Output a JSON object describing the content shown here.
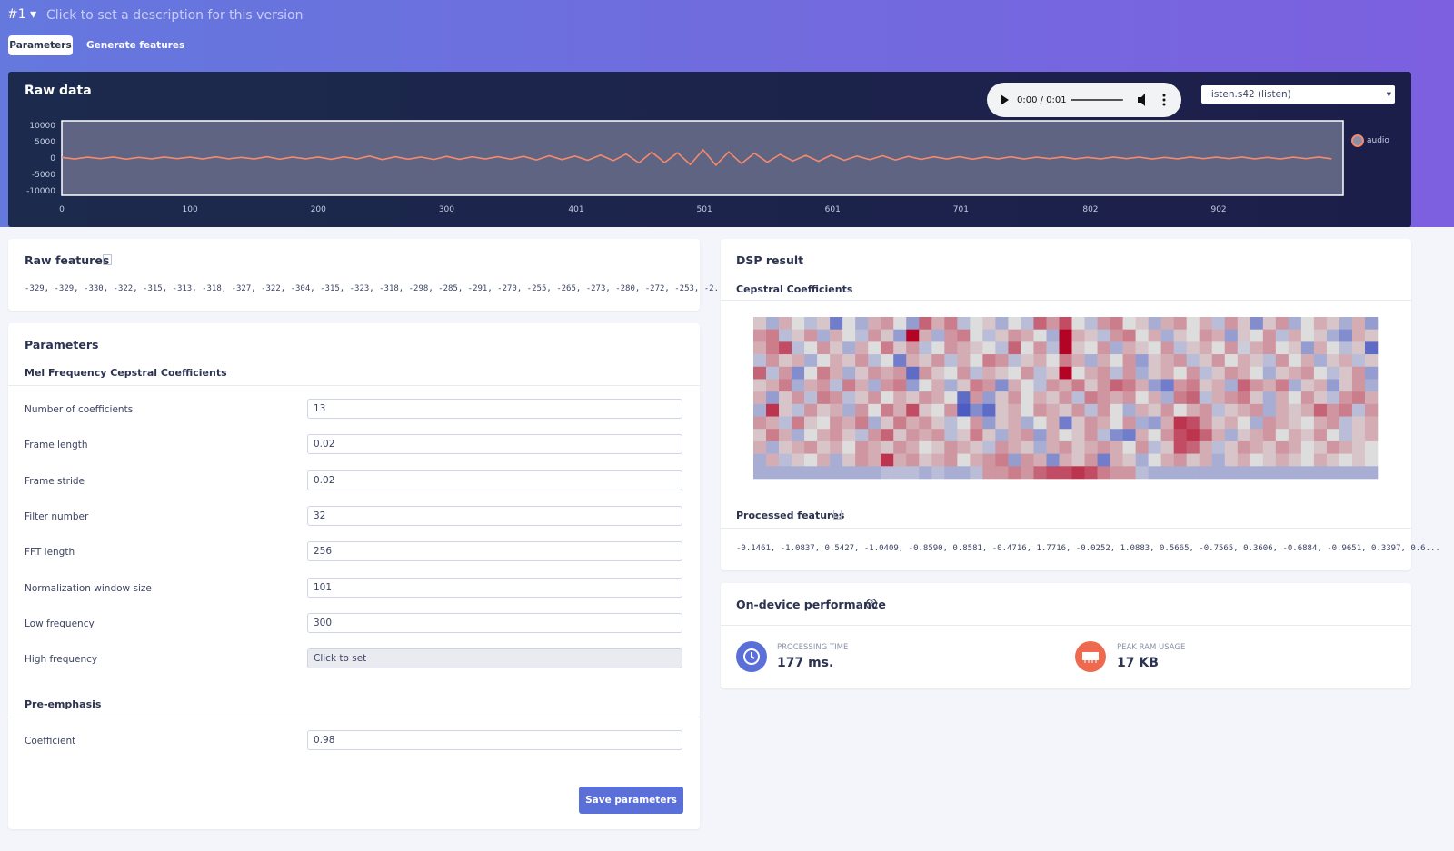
{
  "header": {
    "version": "#1",
    "description": "Click to set a description for this version"
  },
  "tabs": [
    "Parameters",
    "Generate features"
  ],
  "raw_data": {
    "player_time": "0:00 / 0:01",
    "sample_select": "listen.s42 (listen)"
  },
  "chart_data": [
    {
      "type": "line",
      "title": "Raw data",
      "x": [
        0,
        10,
        20,
        30,
        40,
        50,
        60,
        70,
        80,
        90,
        100,
        110,
        120,
        130,
        140,
        150,
        160,
        170,
        180,
        190,
        200,
        210,
        220,
        230,
        240,
        250,
        260,
        270,
        280,
        290,
        300,
        310,
        320,
        330,
        340,
        350,
        360,
        370,
        380,
        390,
        400,
        410,
        420,
        430,
        440,
        450,
        460,
        470,
        480,
        490,
        500,
        510,
        520,
        530,
        540,
        550,
        560,
        570,
        580,
        590,
        600,
        610,
        620,
        630,
        640,
        650,
        660,
        670,
        680,
        690,
        700,
        710,
        720,
        730,
        740,
        750,
        760,
        770,
        780,
        790,
        800,
        810,
        820,
        830,
        840,
        850,
        860,
        870,
        880,
        890,
        900,
        910,
        920,
        930,
        940,
        950,
        960,
        970,
        980,
        990
      ],
      "series": [
        {
          "name": "audio",
          "color": "#f58a6c",
          "values": [
            200,
            -300,
            250,
            -200,
            300,
            -350,
            200,
            -250,
            300,
            -200,
            250,
            -300,
            350,
            -250,
            200,
            -300,
            400,
            -350,
            300,
            -250,
            300,
            -400,
            350,
            -300,
            600,
            -500,
            400,
            -350,
            300,
            -450,
            500,
            -400,
            350,
            -300,
            400,
            -350,
            500,
            -600,
            700,
            -500,
            600,
            -700,
            900,
            -800,
            1200,
            -1500,
            1800,
            -1400,
            1600,
            -2000,
            2500,
            -2200,
            1900,
            -1700,
            1500,
            -1300,
            1100,
            -900,
            800,
            -1000,
            900,
            -700,
            600,
            -500,
            700,
            -600,
            500,
            -400,
            350,
            -300,
            400,
            -350,
            300,
            -250,
            350,
            -300,
            250,
            -200,
            300,
            -250,
            200,
            -250,
            300,
            -200,
            250,
            -300,
            200,
            -250,
            300,
            -200,
            250,
            -200,
            300,
            -250,
            200,
            -300,
            250,
            -200,
            300,
            -250
          ]
        }
      ],
      "xlim": [
        0,
        999
      ],
      "xticks": [
        0,
        100,
        200,
        300,
        401,
        501,
        601,
        701,
        802,
        902
      ],
      "ylim": [
        -11400,
        11400
      ],
      "yticks": [
        10000,
        5000,
        0,
        -5000,
        -10000
      ],
      "grid": false,
      "legend": "right"
    },
    {
      "type": "heatmap",
      "title": "Cepstral Coefficients",
      "colors": [
        "#3b4cc0",
        "#dddddd",
        "#b40426"
      ],
      "z": [
        [
          0.1,
          -0.3,
          0.2,
          0,
          -0.2,
          0.1,
          -0.6,
          0,
          -0.3,
          0.2,
          0.3,
          0,
          -0.4,
          0.5,
          0.2,
          0.4,
          -0.2,
          0,
          0.1,
          -0.3,
          0,
          -0.2,
          0.5,
          0.3,
          0.6,
          0,
          -0.2,
          0.3,
          0.4,
          0,
          0.1,
          -0.3,
          0.2,
          0.3,
          0,
          0.2,
          -0.2,
          0.3,
          0.1,
          -0.5,
          0.1,
          0.3,
          -0.3,
          0,
          0.2,
          0.1,
          -0.3,
          0.2,
          -0.4
        ],
        [
          0.3,
          0.4,
          -0.2,
          0.1,
          0.3,
          -0.3,
          0.2,
          0,
          -0.2,
          0.3,
          0.1,
          -0.4,
          0.9,
          0.2,
          -0.3,
          0.3,
          0.4,
          0,
          -0.2,
          0.1,
          0.3,
          0.2,
          0,
          -0.3,
          0.9,
          0.2,
          0.1,
          -0.2,
          0.3,
          0.4,
          0,
          0.2,
          -0.3,
          0.1,
          0,
          0.3,
          0.2,
          -0.4,
          0.1,
          0,
          0.3,
          -0.2,
          0.2,
          0,
          0.1,
          -0.3,
          -0.5,
          0.2,
          0.1
        ],
        [
          0.2,
          0.4,
          0.6,
          -0.2,
          0,
          0.3,
          0.1,
          -0.3,
          0.2,
          0,
          0.4,
          0.1,
          0.3,
          -0.2,
          0,
          0.3,
          0.2,
          0.1,
          0,
          -0.2,
          0.5,
          0,
          0.3,
          -0.2,
          0.9,
          0.1,
          0,
          0.3,
          -0.3,
          0.2,
          0.1,
          0,
          0.3,
          -0.2,
          0.1,
          0.2,
          0,
          0.3,
          -0.1,
          0.2,
          0.3,
          0,
          0.1,
          -0.4,
          0.2,
          0,
          -0.2,
          0.1,
          -0.7
        ],
        [
          -0.2,
          0.3,
          0.1,
          0.2,
          -0.3,
          0,
          0.2,
          0.1,
          0.3,
          -0.2,
          0,
          -0.6,
          0.2,
          0.1,
          0.3,
          -0.2,
          0.2,
          0,
          0.4,
          0.3,
          -0.2,
          0.1,
          0.2,
          0,
          0.4,
          0.2,
          -0.3,
          0.2,
          0,
          0.3,
          -0.4,
          0.1,
          0.2,
          0.3,
          -0.2,
          0.1,
          0.3,
          0,
          0.2,
          0.1,
          -0.2,
          0.3,
          0,
          0.2,
          -0.3,
          0.1,
          0.2,
          -0.2,
          0.1
        ],
        [
          0.5,
          -0.2,
          0.3,
          -0.5,
          0,
          0.4,
          0.2,
          -0.3,
          0.1,
          0.3,
          0.2,
          0.3,
          -0.7,
          0.3,
          0.1,
          0,
          0.3,
          -0.2,
          0.2,
          0.1,
          0,
          0.3,
          -0.2,
          0.1,
          0.9,
          0,
          0.2,
          0.3,
          -0.2,
          0.3,
          -0.3,
          0.1,
          0.2,
          0,
          0.3,
          -0.2,
          0.1,
          0.3,
          0.2,
          0,
          -0.3,
          0.1,
          0.2,
          0.3,
          0,
          -0.2,
          0.1,
          0.3,
          -0.4
        ],
        [
          0.1,
          0.2,
          0.4,
          -0.3,
          0.2,
          0.3,
          -0.2,
          0.4,
          0.2,
          -0.3,
          0.3,
          0.4,
          -0.4,
          0,
          0.2,
          -0.3,
          0.1,
          0.4,
          0.3,
          -0.5,
          0.2,
          0,
          -0.2,
          0.3,
          0.2,
          0.4,
          0.1,
          0.3,
          0.5,
          0.4,
          0.2,
          -0.4,
          -0.6,
          0.3,
          0.4,
          0.1,
          0.2,
          -0.3,
          0.5,
          0.3,
          0.2,
          0.4,
          -0.3,
          0.1,
          0.2,
          -0.4,
          0.1,
          0.3,
          -0.3
        ],
        [
          0.2,
          -0.4,
          0.1,
          0.3,
          -0.2,
          0.4,
          0.3,
          -0.2,
          0.1,
          0.3,
          0,
          0.2,
          0.1,
          0.3,
          0.2,
          0,
          -0.7,
          0.3,
          -0.4,
          0.1,
          0.3,
          0,
          0.2,
          0.1,
          0.3,
          -0.2,
          0.4,
          0.3,
          0.2,
          0.3,
          0,
          0.2,
          -0.3,
          0.4,
          0.5,
          -0.2,
          0.2,
          0.3,
          0.4,
          0.1,
          -0.3,
          0.2,
          0,
          0.3,
          0.1,
          -0.2,
          0.3,
          0.4,
          0.2
        ],
        [
          -0.3,
          0.7,
          0.1,
          -0.2,
          0.3,
          0.1,
          0.2,
          -0.3,
          0.3,
          0,
          0.4,
          0.2,
          0.6,
          0.1,
          0,
          0.3,
          -0.8,
          -0.5,
          -0.7,
          0.1,
          0.2,
          0,
          0.3,
          0.2,
          0.1,
          0.3,
          -0.2,
          0.3,
          0,
          -0.3,
          0.2,
          0.1,
          0.3,
          0,
          0.2,
          0.3,
          -0.2,
          0.1,
          0.2,
          0.3,
          -0.3,
          0.2,
          0.1,
          0.2,
          0.5,
          0.3,
          0.4,
          -0.2,
          0.3
        ],
        [
          0.3,
          0.2,
          -0.2,
          0.4,
          0.1,
          0,
          0.3,
          0.2,
          0.4,
          -0.3,
          0.1,
          0.4,
          0.2,
          0.3,
          0.1,
          -0.2,
          0,
          0.3,
          -0.4,
          0.1,
          0.2,
          -0.3,
          0,
          0.2,
          -0.6,
          0.1,
          0.3,
          0.2,
          0,
          0.3,
          -0.3,
          -0.4,
          0.2,
          0.7,
          0.6,
          0.3,
          0.1,
          0.2,
          0,
          -0.3,
          0.3,
          0.2,
          0.1,
          0,
          0.2,
          0.3,
          -0.2,
          0.1,
          0.2
        ],
        [
          0.1,
          0.4,
          0.2,
          -0.3,
          0,
          0.2,
          0.3,
          0.1,
          -0.2,
          0.3,
          0.5,
          0.1,
          0.3,
          0.2,
          0.3,
          -0.2,
          0.1,
          0.4,
          0.1,
          -0.3,
          0.2,
          0.3,
          -0.4,
          0.2,
          0,
          0.1,
          0.3,
          -0.2,
          -0.5,
          -0.6,
          0.2,
          0,
          0.3,
          0.6,
          0.7,
          0.5,
          0.2,
          -0.3,
          0.1,
          0.2,
          0.3,
          0,
          0.2,
          0.1,
          0.3,
          0,
          -0.2,
          0.1,
          0.2
        ],
        [
          0.2,
          -0.3,
          0.1,
          0.2,
          0.3,
          0.1,
          0.2,
          0,
          0.3,
          0.2,
          0.1,
          0.3,
          0.2,
          0,
          0.1,
          0.3,
          0.2,
          0.1,
          -0.2,
          0.3,
          0.2,
          0.1,
          -0.3,
          0.2,
          0.3,
          0.1,
          0.2,
          0.3,
          0.2,
          0,
          0.3,
          -0.2,
          0.1,
          0.6,
          0.5,
          0.2,
          -0.2,
          0.1,
          0.3,
          0.2,
          0.1,
          0.3,
          0.2,
          0,
          0.1,
          0.3,
          0.2,
          0.1,
          0
        ],
        [
          -0.3,
          0.2,
          -0.2,
          0.1,
          0,
          0.2,
          -0.3,
          0.1,
          0.3,
          0.2,
          0.7,
          0.2,
          0.3,
          0.1,
          0.2,
          0.3,
          0,
          0.2,
          0.3,
          0.4,
          -0.4,
          0.3,
          0.2,
          -0.5,
          0.2,
          0.1,
          0.3,
          -0.6,
          0.2,
          0.1,
          -0.3,
          0,
          0.2,
          0.3,
          0.1,
          0.2,
          -0.3,
          0.1,
          0.2,
          0,
          0.1,
          0.2,
          0.1,
          0,
          0.2,
          0.1,
          0,
          0.1,
          0
        ],
        [
          -0.3,
          -0.3,
          -0.3,
          -0.3,
          -0.3,
          -0.3,
          -0.3,
          -0.3,
          -0.3,
          -0.3,
          -0.2,
          -0.2,
          -0.2,
          -0.3,
          -0.2,
          -0.3,
          -0.3,
          -0.2,
          0.3,
          0.3,
          0.4,
          0.3,
          0.5,
          0.6,
          0.6,
          0.7,
          0.6,
          0.4,
          0.3,
          0.3,
          -0.2,
          -0.3,
          -0.3,
          -0.3,
          -0.3,
          -0.3,
          -0.3,
          -0.3,
          -0.3,
          -0.3,
          -0.3,
          -0.3,
          -0.3,
          -0.3,
          -0.3,
          -0.3,
          -0.3,
          -0.3,
          -0.3
        ]
      ]
    }
  ],
  "raw_features": {
    "title": "Raw features",
    "text": "-329, -329, -330, -322, -315, -313, -318, -327, -322, -304, -315, -323, -318, -298, -285, -291, -270, -255, -265, -273, -280, -272, -253, -2..."
  },
  "parameters": {
    "title": "Parameters",
    "sections": [
      {
        "title": "Mel Frequency Cepstral Coefficients",
        "fields": [
          {
            "label": "Number of coefficients",
            "value": 13
          },
          {
            "label": "Frame length",
            "value": 0.02
          },
          {
            "label": "Frame stride",
            "value": 0.02
          },
          {
            "label": "Filter number",
            "value": 32
          },
          {
            "label": "FFT length",
            "value": 256
          },
          {
            "label": "Normalization window size",
            "value": 101
          },
          {
            "label": "Low frequency",
            "value": 300
          },
          {
            "label": "High frequency",
            "placeholder": "Click to set"
          }
        ]
      },
      {
        "title": "Pre-emphasis",
        "fields": [
          {
            "label": "Coefficient",
            "value": 0.98
          }
        ]
      }
    ],
    "save": "Save parameters"
  },
  "dsp": {
    "title": "DSP result",
    "processed_title": "Processed features",
    "processed_text": "-0.1461, -1.0837, 0.5427, -1.0409, -0.8590, 0.8581, -0.4716, 1.7716, -0.0252, 1.0883, 0.5665, -0.7565, 0.3606, -0.6884, -0.9651, 0.3397, 0.6..."
  },
  "performance": {
    "title": "On-device performance",
    "items": [
      {
        "label": "PROCESSING TIME",
        "value": "177 ms."
      },
      {
        "label": "PEAK RAM USAGE",
        "value": "17 KB"
      }
    ]
  }
}
